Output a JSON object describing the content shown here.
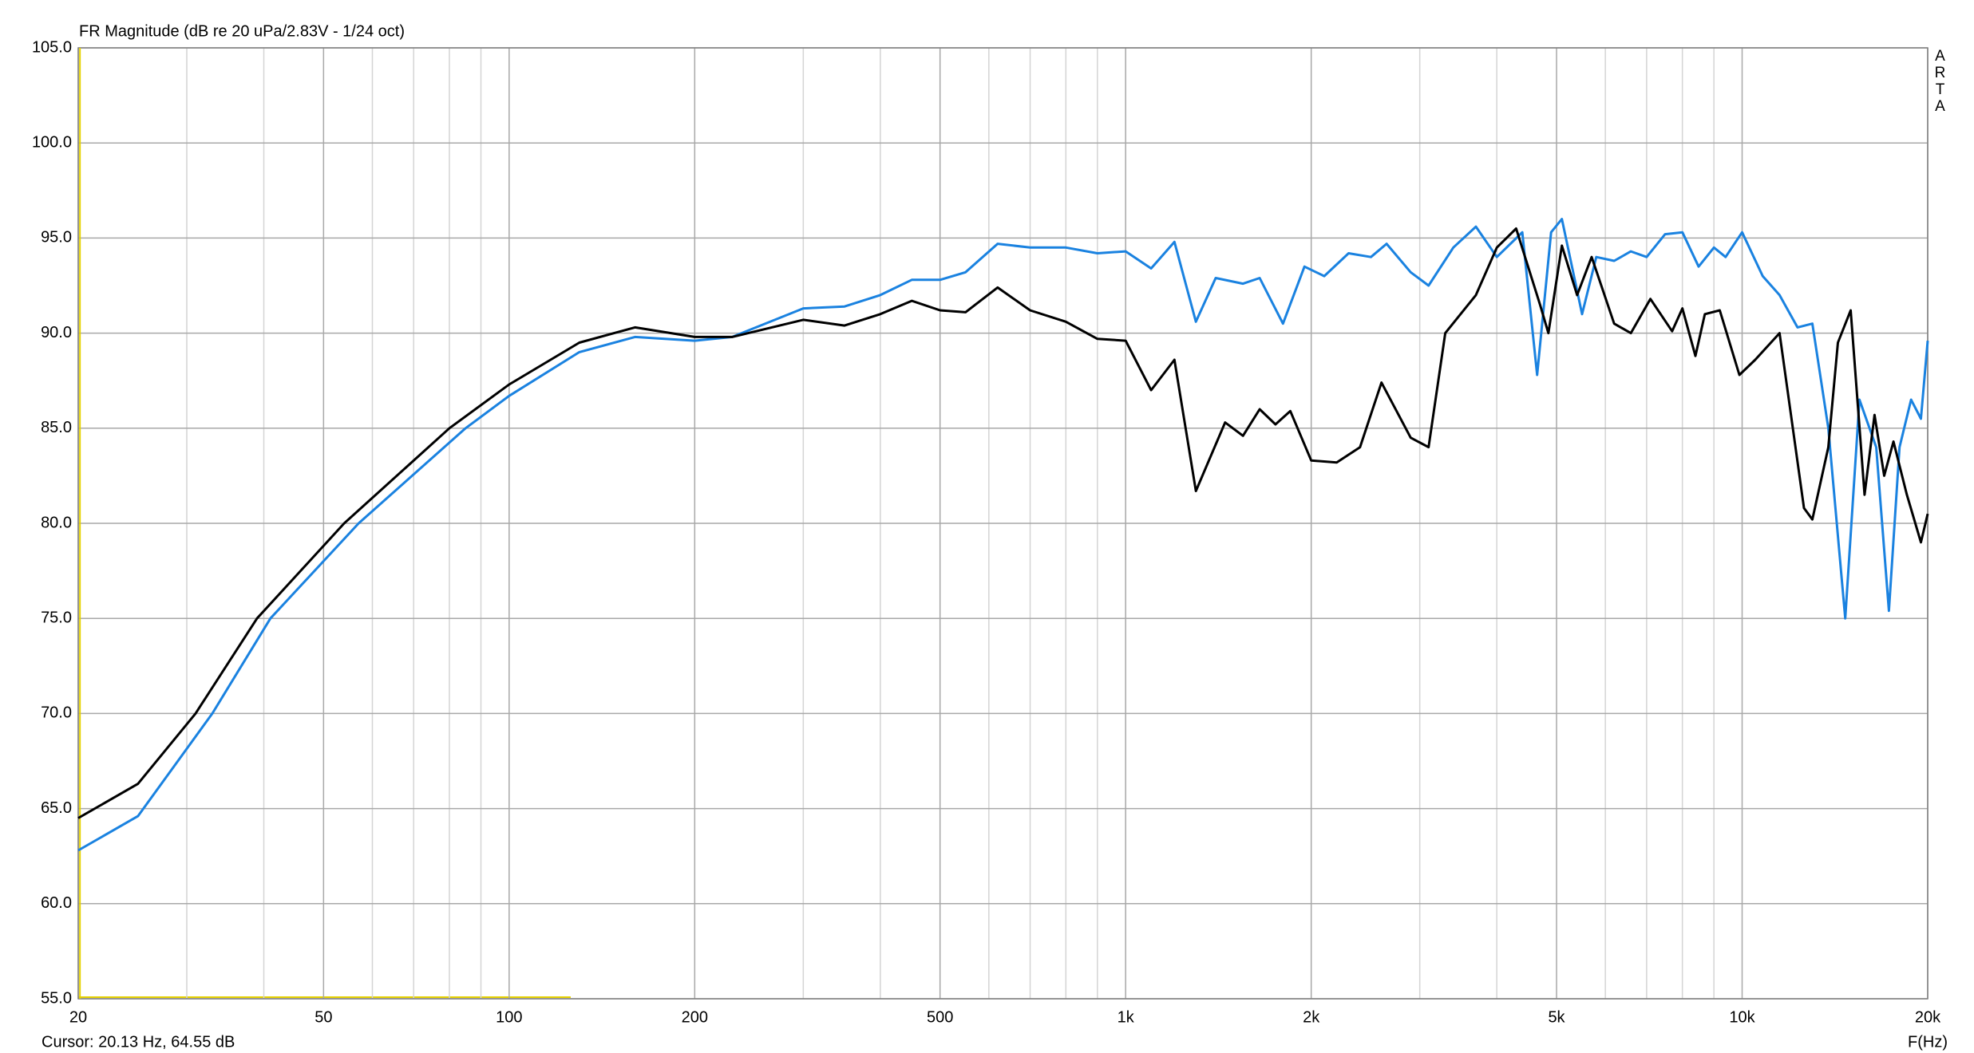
{
  "chart_data": {
    "type": "line",
    "title": "FR Magnitude (dB re 20 uPa/2.83V - 1/24 oct)",
    "side_label": "ARTA",
    "x_label": "F(Hz)",
    "cursor_text": "Cursor: 20.13 Hz, 64.55 dB",
    "cursor_x": 20.13,
    "cursor_color": "#e6d200",
    "xscale": "log",
    "xlim": [
      20,
      20000
    ],
    "ylim": [
      55,
      105
    ],
    "grid": true,
    "xticks": [
      20,
      50,
      100,
      200,
      500,
      {
        "value": 1000,
        "label": "1k"
      },
      {
        "value": 2000,
        "label": "2k"
      },
      {
        "value": 5000,
        "label": "5k"
      },
      {
        "value": 10000,
        "label": "10k"
      },
      {
        "value": 20000,
        "label": "20k"
      }
    ],
    "x_minor_grid": [
      30,
      40,
      60,
      70,
      80,
      90,
      300,
      400,
      600,
      700,
      800,
      900,
      3000,
      4000,
      6000,
      7000,
      8000,
      9000
    ],
    "yticks": [
      {
        "value": 55,
        "label": "55.0"
      },
      {
        "value": 60,
        "label": "60.0"
      },
      {
        "value": 65,
        "label": "65.0"
      },
      {
        "value": 70,
        "label": "70.0"
      },
      {
        "value": 75,
        "label": "75.0"
      },
      {
        "value": 80,
        "label": "80.0"
      },
      {
        "value": 85,
        "label": "85.0"
      },
      {
        "value": 90,
        "label": "90.0"
      },
      {
        "value": 95,
        "label": "95.0"
      },
      {
        "value": 100,
        "label": "100.0"
      },
      {
        "value": 105,
        "label": "105.0"
      }
    ],
    "series": [
      {
        "color": "#1a82e0",
        "x": [
          20,
          25,
          33,
          41,
          57,
          85,
          100,
          130,
          160,
          200,
          230,
          300,
          350,
          400,
          450,
          500,
          550,
          620,
          700,
          800,
          900,
          1000,
          1100,
          1200,
          1300,
          1400,
          1550,
          1650,
          1800,
          1950,
          2100,
          2300,
          2500,
          2650,
          2900,
          3100,
          3400,
          3700,
          4000,
          4400,
          4650,
          4900,
          5100,
          5500,
          5800,
          6200,
          6600,
          7000,
          7500,
          8000,
          8500,
          9000,
          9400,
          10000,
          10800,
          11500,
          12300,
          13000,
          13800,
          14700,
          15500,
          16500,
          17300,
          18000,
          18800,
          19500,
          20000
        ],
        "values": [
          62.8,
          64.6,
          70,
          75,
          80,
          85,
          86.7,
          89,
          89.8,
          89.6,
          89.8,
          91.3,
          91.4,
          92.0,
          92.8,
          92.8,
          93.2,
          94.7,
          94.5,
          94.5,
          94.2,
          94.3,
          93.4,
          94.8,
          90.6,
          92.9,
          92.6,
          92.9,
          90.5,
          93.5,
          93.0,
          94.2,
          94.0,
          94.7,
          93.2,
          92.5,
          94.5,
          95.6,
          94.0,
          95.3,
          87.8,
          95.3,
          96.0,
          91.0,
          94.0,
          93.8,
          94.3,
          94.0,
          95.2,
          95.3,
          93.5,
          94.5,
          94.0,
          95.3,
          93.0,
          92.0,
          90.3,
          90.5,
          85.0,
          75.0,
          86.5,
          84.0,
          75.4,
          84.0,
          86.5,
          85.5,
          89.6
        ]
      },
      {
        "color": "#000000",
        "x": [
          20,
          25,
          31,
          39,
          54,
          80,
          100,
          130,
          160,
          200,
          230,
          300,
          350,
          400,
          450,
          500,
          550,
          620,
          700,
          800,
          900,
          1000,
          1100,
          1200,
          1300,
          1450,
          1550,
          1650,
          1750,
          1850,
          2000,
          2200,
          2400,
          2600,
          2900,
          3100,
          3300,
          3700,
          4000,
          4300,
          4700,
          4850,
          5100,
          5400,
          5700,
          6200,
          6600,
          7100,
          7700,
          8000,
          8400,
          8700,
          9200,
          9900,
          10500,
          11500,
          12600,
          13000,
          13800,
          14300,
          15000,
          15800,
          16400,
          17000,
          17600,
          18500,
          19500,
          20000
        ],
        "values": [
          64.5,
          66.3,
          70,
          75,
          80,
          85,
          87.3,
          89.5,
          90.3,
          89.8,
          89.8,
          90.7,
          90.4,
          91.0,
          91.7,
          91.2,
          91.1,
          92.4,
          91.2,
          90.6,
          89.7,
          89.6,
          87.0,
          88.6,
          81.7,
          85.3,
          84.6,
          86.0,
          85.2,
          85.9,
          83.3,
          83.2,
          84.0,
          87.4,
          84.5,
          84.0,
          90.0,
          92.0,
          94.5,
          95.5,
          91.5,
          90.0,
          94.6,
          92.0,
          94.0,
          90.5,
          90.0,
          91.8,
          90.1,
          91.3,
          88.8,
          91.0,
          91.2,
          87.8,
          88.6,
          90.0,
          80.8,
          80.2,
          84.0,
          89.5,
          91.2,
          81.5,
          85.7,
          82.5,
          84.3,
          81.5,
          79.0,
          80.5
        ]
      }
    ]
  }
}
